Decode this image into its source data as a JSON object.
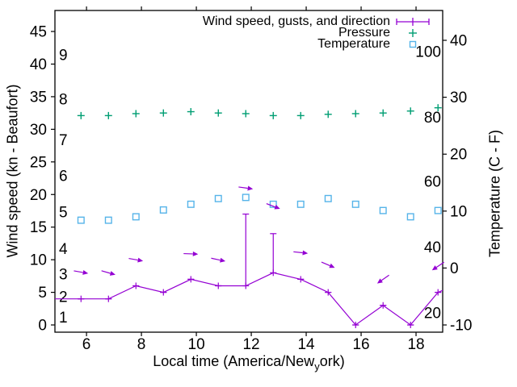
{
  "chart_data": {
    "type": "line",
    "background_color": "#ffffff",
    "frame_color": "#000000",
    "x_hours": [
      5.8,
      6.8,
      7.8,
      8.8,
      9.8,
      10.8,
      11.8,
      12.8,
      13.8,
      14.8,
      15.8,
      16.8,
      17.8,
      18.8
    ],
    "series": [
      {
        "name": "Wind speed, gusts, and direction",
        "style": "errorbar-line",
        "color": "#9400d3",
        "axis": "left",
        "values": [
          4,
          4,
          6,
          5,
          7,
          6,
          6,
          8,
          7,
          5,
          0,
          3,
          0,
          5
        ],
        "gusts": [
          4,
          4,
          6,
          5,
          7,
          6,
          17,
          14,
          7,
          5,
          0,
          3,
          0,
          5
        ],
        "edge_extension": {
          "left": {
            "x": 4.85,
            "y": 4
          },
          "right": {
            "x": 18.97,
            "y": 5.3
          }
        }
      },
      {
        "name": "Pressure",
        "style": "plus-points",
        "color": "#009e73",
        "axis": "left",
        "values": [
          32.1,
          32.1,
          32.4,
          32.5,
          32.7,
          32.5,
          32.4,
          32.1,
          32.1,
          32.3,
          32.4,
          32.5,
          32.8,
          33.3
        ]
      },
      {
        "name": "Temperature",
        "style": "square-points",
        "color": "#56b4e9",
        "axis": "right",
        "values": [
          8.4,
          8.4,
          9.0,
          10.2,
          11.2,
          12.2,
          12.4,
          11.2,
          11.2,
          12.2,
          11.2,
          10.1,
          9.0,
          10.1
        ]
      }
    ],
    "wind_arrows": {
      "color": "#9400d3",
      "points": [
        {
          "x": 5.8,
          "y": 8.1,
          "angle": 10
        },
        {
          "x": 6.8,
          "y": 8.0,
          "angle": 16
        },
        {
          "x": 7.8,
          "y": 10.0,
          "angle": 10
        },
        {
          "x": 9.8,
          "y": 10.9,
          "angle": 2
        },
        {
          "x": 10.8,
          "y": 10.0,
          "angle": 12
        },
        {
          "x": 11.8,
          "y": 21.0,
          "angle": 8
        },
        {
          "x": 12.8,
          "y": 18.2,
          "angle": 21
        },
        {
          "x": 13.8,
          "y": 11.1,
          "angle": 6
        },
        {
          "x": 14.8,
          "y": 9.2,
          "angle": 23
        },
        {
          "x": 16.8,
          "y": 7.0,
          "angle": 145
        },
        {
          "x": 18.8,
          "y": 9.0,
          "angle": 146
        }
      ]
    },
    "axes": {
      "x": {
        "label": "Local time (America/New_york)",
        "label_parts": {
          "prefix": "Local time (America/New",
          "sub": "y",
          "suffix": "ork)"
        },
        "ticks": [
          "6",
          "8",
          "10",
          "12",
          "14",
          "16",
          "18"
        ],
        "tick_values": [
          6,
          8,
          10,
          12,
          14,
          16,
          18
        ],
        "range": [
          4.85,
          18.97
        ]
      },
      "y_left": {
        "label": "Wind speed (kn - Beaufort)",
        "ticks": [
          "0",
          "5",
          "10",
          "15",
          "20",
          "25",
          "30",
          "35",
          "40",
          "45"
        ],
        "tick_values": [
          0,
          5,
          10,
          15,
          20,
          25,
          30,
          35,
          40,
          45
        ],
        "range": [
          -1.11,
          48.22
        ]
      },
      "y_left_inner_beaufort": {
        "labels": [
          "1",
          "2",
          "3",
          "4",
          "5",
          "6",
          "7",
          "8",
          "9"
        ],
        "positions_kn": [
          1.2,
          4.3,
          7.8,
          11.7,
          17.3,
          22.9,
          28.4,
          34.6,
          41.4
        ]
      },
      "y_right": {
        "label": "Temperature (C - F)",
        "ticks": [
          "-10",
          "0",
          "10",
          "20",
          "30",
          "40"
        ],
        "tick_values": [
          -10,
          0,
          10,
          20,
          30,
          40
        ],
        "range": [
          -11.27,
          45.24
        ]
      },
      "y_right_inner_fahrenheit": {
        "labels": [
          "20",
          "40",
          "60",
          "80",
          "100"
        ],
        "positions_c": [
          -7.9,
          3.7,
          15.2,
          26.5,
          38.0
        ]
      }
    },
    "legend": {
      "position": "top-right",
      "entries": [
        {
          "label": "Wind speed, gusts, and direction",
          "symbol": "errorbar",
          "color": "#9400d3"
        },
        {
          "label": "Pressure",
          "symbol": "plus",
          "color": "#009e73"
        },
        {
          "label": "Temperature",
          "symbol": "square",
          "color": "#56b4e9"
        }
      ]
    }
  }
}
